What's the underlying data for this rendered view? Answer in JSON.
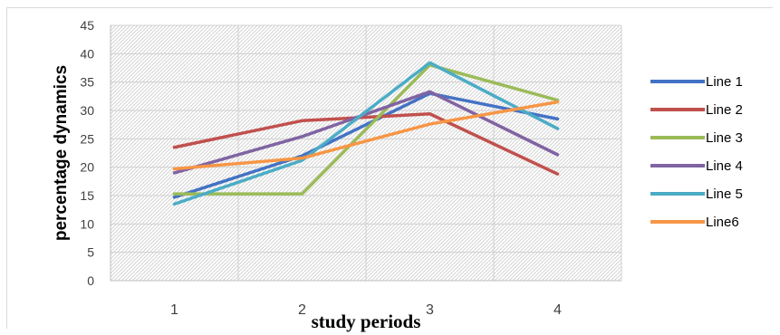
{
  "chart_data": {
    "type": "line",
    "title": "",
    "xlabel": "study periods",
    "ylabel": "percentage dynamics",
    "categories": [
      "1",
      "2",
      "3",
      "4"
    ],
    "ylim": [
      0,
      45
    ],
    "yticks": [
      "0",
      "5",
      "10",
      "15",
      "20",
      "25",
      "30",
      "35",
      "40",
      "45"
    ],
    "grid": true,
    "legend_position": "right",
    "series": [
      {
        "name": "Line 1",
        "color": "#4472c4",
        "values": [
          14.7,
          22.0,
          33.0,
          28.5
        ]
      },
      {
        "name": "Line 2",
        "color": "#c0504d",
        "values": [
          23.5,
          28.2,
          29.4,
          18.8
        ]
      },
      {
        "name": "Line 3",
        "color": "#9bbb59",
        "values": [
          15.3,
          15.3,
          38.0,
          31.8
        ]
      },
      {
        "name": "Line 4",
        "color": "#8064a2",
        "values": [
          19.0,
          25.4,
          33.3,
          22.2
        ]
      },
      {
        "name": "Line 5",
        "color": "#4bacc6",
        "values": [
          13.5,
          21.2,
          38.4,
          26.8
        ]
      },
      {
        "name": "Line6",
        "color": "#f79646",
        "values": [
          19.7,
          21.6,
          27.6,
          31.5
        ]
      }
    ]
  }
}
